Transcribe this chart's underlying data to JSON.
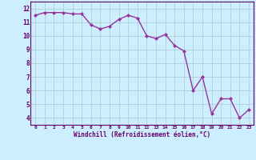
{
  "x": [
    0,
    1,
    2,
    3,
    4,
    5,
    6,
    7,
    8,
    9,
    10,
    11,
    12,
    13,
    14,
    15,
    16,
    17,
    18,
    19,
    20,
    21,
    22,
    23
  ],
  "y": [
    11.5,
    11.7,
    11.7,
    11.7,
    11.6,
    11.6,
    10.8,
    10.5,
    10.7,
    11.2,
    11.5,
    11.3,
    10.0,
    9.8,
    10.1,
    9.3,
    8.9,
    6.0,
    7.0,
    4.3,
    5.4,
    5.4,
    4.0,
    4.6
  ],
  "line_color": "#993399",
  "marker_color": "#993399",
  "bg_color": "#cceeff",
  "grid_color": "#aacccc",
  "xlabel": "Windchill (Refroidissement éolien,°C)",
  "ylabel_ticks": [
    4,
    5,
    6,
    7,
    8,
    9,
    10,
    11,
    12
  ],
  "xlim": [
    -0.5,
    23.5
  ],
  "ylim": [
    3.5,
    12.5
  ],
  "xtick_labels": [
    "0",
    "1",
    "2",
    "3",
    "4",
    "5",
    "6",
    "7",
    "8",
    "9",
    "10",
    "11",
    "12",
    "13",
    "14",
    "15",
    "16",
    "17",
    "18",
    "19",
    "20",
    "21",
    "22",
    "23"
  ],
  "xlabel_color": "#660066",
  "tick_color": "#660066",
  "border_color": "#660066"
}
